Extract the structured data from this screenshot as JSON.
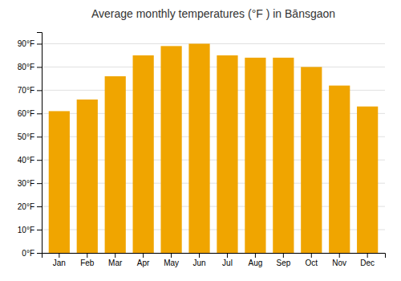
{
  "chart_data": {
    "type": "bar",
    "title": "Average monthly temperatures (°F ) in Bānsgaon",
    "categories": [
      "Jan",
      "Feb",
      "Mar",
      "Apr",
      "May",
      "Jun",
      "Jul",
      "Aug",
      "Sep",
      "Oct",
      "Nov",
      "Dec"
    ],
    "values": [
      61,
      66,
      76,
      85,
      89,
      90,
      85,
      84,
      84,
      80,
      72,
      63
    ],
    "color": "#F0A500",
    "ylim": [
      0,
      95
    ],
    "yticks": [
      {
        "value": 0,
        "label": "0°F"
      },
      {
        "value": 10,
        "label": "10°F"
      },
      {
        "value": 20,
        "label": "20°F"
      },
      {
        "value": 30,
        "label": "30°F"
      },
      {
        "value": 40,
        "label": "40°F"
      },
      {
        "value": 50,
        "label": "50°F"
      },
      {
        "value": 60,
        "label": "60°F"
      },
      {
        "value": 70,
        "label": "70°F"
      },
      {
        "value": 80,
        "label": "80°F"
      },
      {
        "value": 90,
        "label": "90°F"
      }
    ],
    "grid": true
  }
}
